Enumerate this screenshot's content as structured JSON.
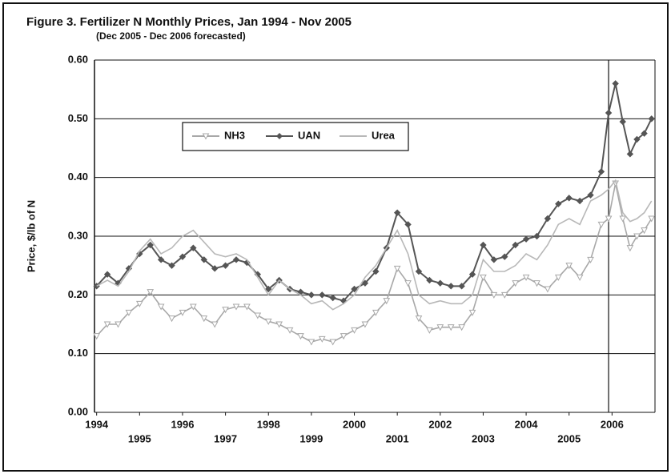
{
  "chart_data": {
    "type": "line",
    "title": "Figure 3.  Fertilizer N Monthly Prices, Jan 1994 - Nov 2005",
    "subtitle": "(Dec 2005 - Dec 2006 forecasted)",
    "y_label": "Price, $/lb of N",
    "x": [
      1994.0,
      1994.25,
      1994.5,
      1994.75,
      1995.0,
      1995.25,
      1995.5,
      1995.75,
      1996.0,
      1996.25,
      1996.5,
      1996.75,
      1997.0,
      1997.25,
      1997.5,
      1997.75,
      1998.0,
      1998.25,
      1998.5,
      1998.75,
      1999.0,
      1999.25,
      1999.5,
      1999.75,
      2000.0,
      2000.25,
      2000.5,
      2000.75,
      2001.0,
      2001.25,
      2001.5,
      2001.75,
      2002.0,
      2002.25,
      2002.5,
      2002.75,
      2003.0,
      2003.25,
      2003.5,
      2003.75,
      2004.0,
      2004.25,
      2004.5,
      2004.75,
      2005.0,
      2005.25,
      2005.5,
      2005.75,
      2005.92,
      2006.08,
      2006.25,
      2006.42,
      2006.58,
      2006.75,
      2006.92
    ],
    "series": [
      {
        "name": "NH3",
        "color": "#a8a8a8",
        "marker": "triangle",
        "values": [
          0.13,
          0.15,
          0.15,
          0.17,
          0.185,
          0.205,
          0.18,
          0.16,
          0.17,
          0.18,
          0.16,
          0.15,
          0.175,
          0.18,
          0.18,
          0.165,
          0.155,
          0.15,
          0.14,
          0.13,
          0.12,
          0.125,
          0.12,
          0.13,
          0.14,
          0.15,
          0.17,
          0.19,
          0.245,
          0.22,
          0.16,
          0.14,
          0.145,
          0.145,
          0.145,
          0.17,
          0.23,
          0.2,
          0.2,
          0.22,
          0.23,
          0.22,
          0.21,
          0.23,
          0.25,
          0.23,
          0.26,
          0.32,
          0.33,
          0.39,
          0.33,
          0.28,
          0.3,
          0.31,
          0.33
        ]
      },
      {
        "name": "UAN",
        "color": "#555555",
        "marker": "diamond",
        "values": [
          0.215,
          0.235,
          0.22,
          0.245,
          0.27,
          0.285,
          0.26,
          0.25,
          0.265,
          0.28,
          0.26,
          0.245,
          0.25,
          0.26,
          0.255,
          0.235,
          0.21,
          0.225,
          0.21,
          0.205,
          0.2,
          0.2,
          0.195,
          0.19,
          0.21,
          0.22,
          0.24,
          0.28,
          0.34,
          0.32,
          0.24,
          0.225,
          0.22,
          0.215,
          0.215,
          0.235,
          0.285,
          0.26,
          0.265,
          0.285,
          0.295,
          0.3,
          0.33,
          0.355,
          0.365,
          0.36,
          0.37,
          0.41,
          0.51,
          0.56,
          0.495,
          0.44,
          0.465,
          0.475,
          0.5
        ]
      },
      {
        "name": "Urea",
        "color": "#b8b8b8",
        "marker": "none",
        "values": [
          0.215,
          0.225,
          0.215,
          0.24,
          0.275,
          0.295,
          0.27,
          0.28,
          0.3,
          0.31,
          0.29,
          0.27,
          0.265,
          0.27,
          0.26,
          0.23,
          0.2,
          0.225,
          0.21,
          0.2,
          0.185,
          0.19,
          0.175,
          0.185,
          0.2,
          0.23,
          0.25,
          0.28,
          0.31,
          0.27,
          0.2,
          0.185,
          0.19,
          0.185,
          0.185,
          0.2,
          0.26,
          0.24,
          0.24,
          0.25,
          0.27,
          0.26,
          0.285,
          0.32,
          0.33,
          0.32,
          0.36,
          0.37,
          0.38,
          0.395,
          0.34,
          0.325,
          0.33,
          0.34,
          0.36
        ]
      }
    ],
    "xlim": [
      1993.95,
      2007.0
    ],
    "xticks": [
      1994,
      1995,
      1996,
      1997,
      1998,
      1999,
      2000,
      2001,
      2002,
      2003,
      2004,
      2005,
      2006
    ],
    "ylim": [
      0,
      0.6
    ],
    "yticks": [
      {
        "value": 0,
        "label": "0.00"
      },
      {
        "value": 0.1,
        "label": "0.10"
      },
      {
        "value": 0.2,
        "label": "0.20"
      },
      {
        "value": 0.3,
        "label": "0.30"
      },
      {
        "value": 0.4,
        "label": "0.40"
      },
      {
        "value": 0.5,
        "label": "0.50"
      },
      {
        "value": 0.6,
        "label": "0.60"
      }
    ],
    "grid": true,
    "forecast_line_x": 2005.92,
    "legend": "top"
  }
}
